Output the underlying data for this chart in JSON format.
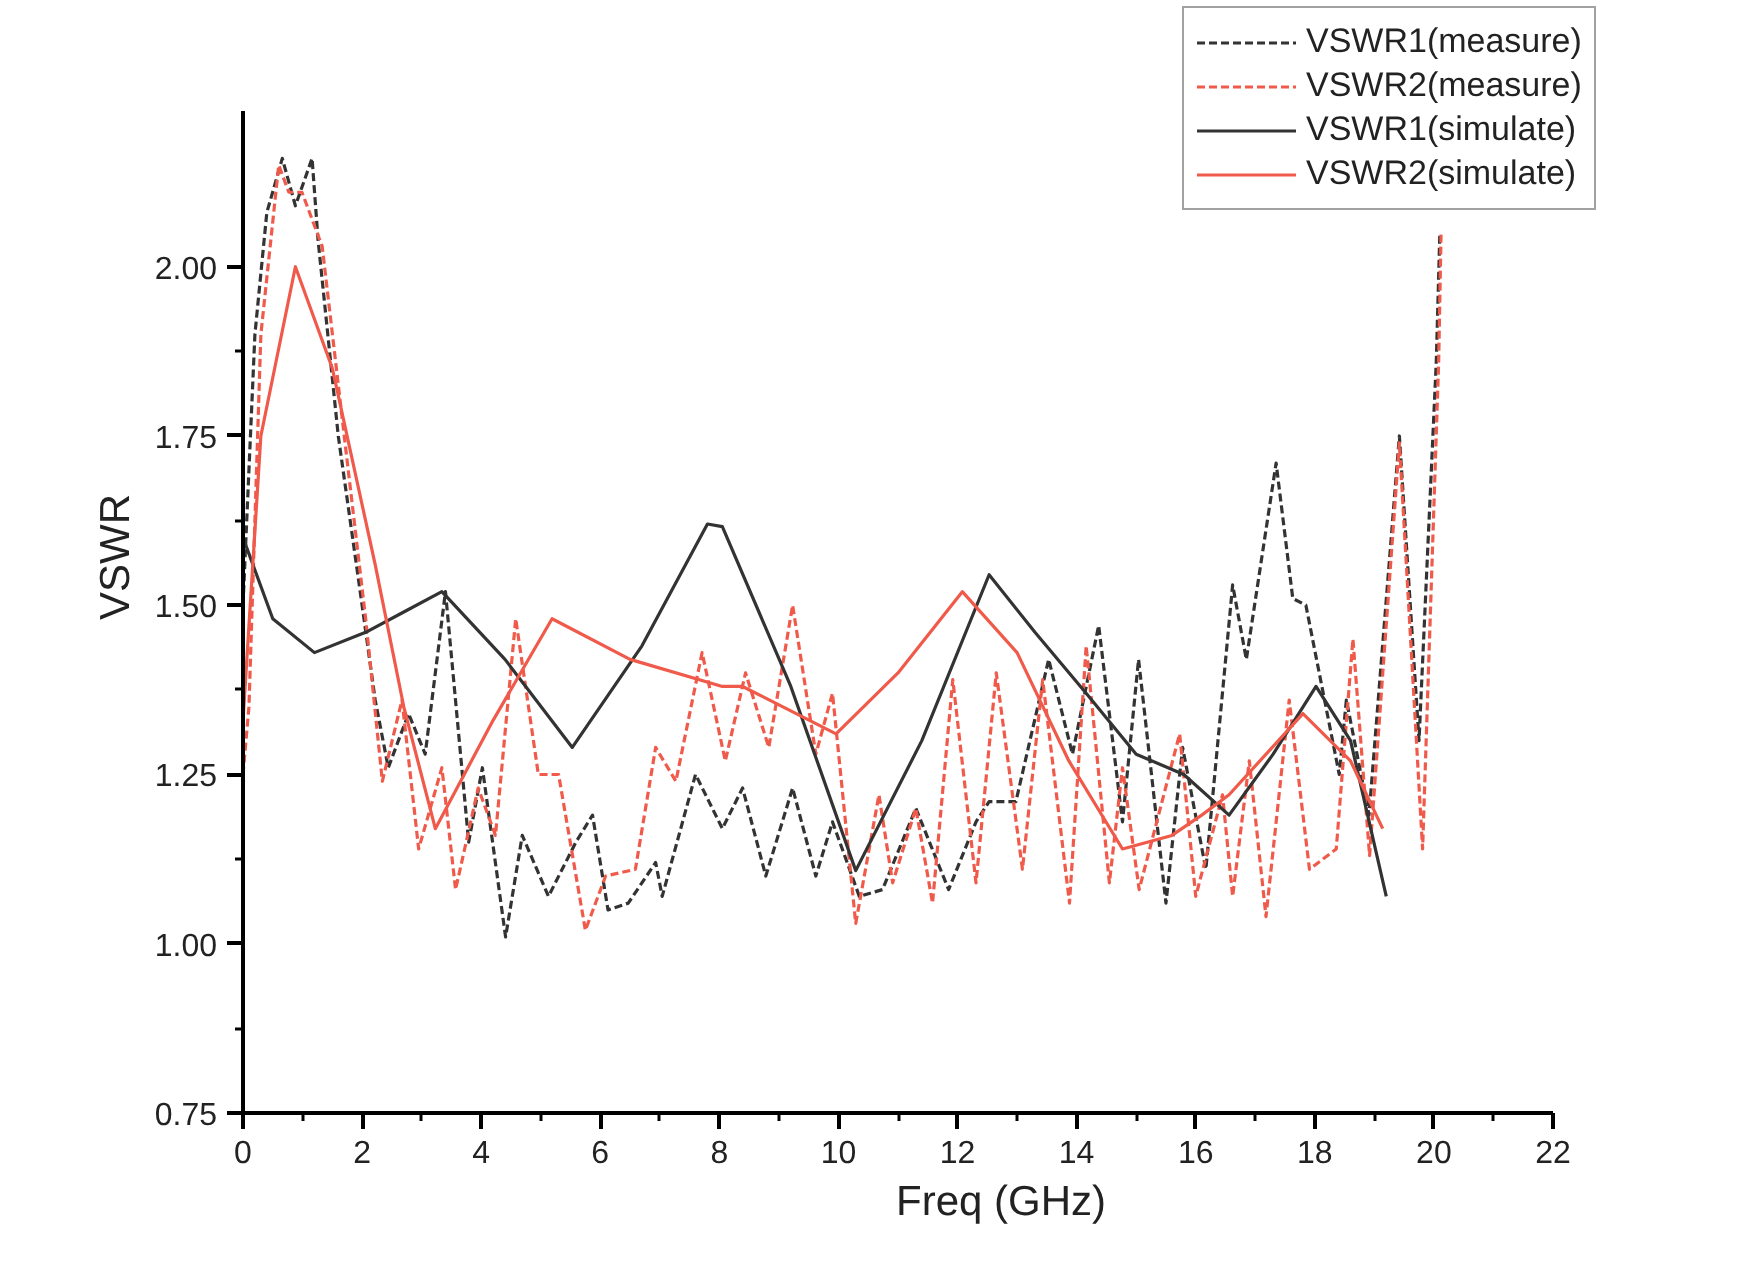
{
  "chart_data": {
    "type": "line",
    "xlabel": "Freq (GHz)",
    "ylabel": "VSWR",
    "xlim": [
      0,
      22
    ],
    "ylim": [
      0.75,
      2.23
    ],
    "xticks": [
      0,
      2,
      4,
      6,
      8,
      10,
      12,
      14,
      16,
      18,
      20,
      22
    ],
    "yticks": [
      0.75,
      {
        "value": 1,
        "label": "1.00"
      },
      1.25,
      {
        "value": 1.5,
        "label": "1.50"
      },
      1.75,
      {
        "value": 2,
        "label": "2.00"
      }
    ],
    "grid": false,
    "legend": "top right",
    "marker": "none",
    "series": [
      {
        "name": "VSWR1(measure)",
        "color": "#333333",
        "line_style": "dashed",
        "x": [
          0,
          0.2,
          0.4,
          0.66,
          0.88,
          1.16,
          1.26,
          1.6,
          2.0,
          2.22,
          2.44,
          2.78,
          3.06,
          3.4,
          3.79,
          4.02,
          4.41,
          4.69,
          5.13,
          5.59,
          5.87,
          6.13,
          6.47,
          6.93,
          7.04,
          7.6,
          8.05,
          8.39,
          8.78,
          9.23,
          9.62,
          9.9,
          10.35,
          10.74,
          11.3,
          11.85,
          12.31,
          12.53,
          12.98,
          13.53,
          13.93,
          14.37,
          14.77,
          15.04,
          15.5,
          15.78,
          16.17,
          16.62,
          16.85,
          17.35,
          17.63,
          17.85,
          18.41,
          18.53,
          18.91,
          19.42,
          19.75,
          20.04,
          20.1
        ],
        "values": [
          1.5,
          1.9,
          2.08,
          2.16,
          2.09,
          2.16,
          2.04,
          1.75,
          1.5,
          1.36,
          1.26,
          1.34,
          1.28,
          1.52,
          1.15,
          1.26,
          1.01,
          1.16,
          1.07,
          1.15,
          1.19,
          1.05,
          1.06,
          1.12,
          1.07,
          1.25,
          1.17,
          1.23,
          1.1,
          1.23,
          1.1,
          1.18,
          1.07,
          1.08,
          1.2,
          1.08,
          1.18,
          1.21,
          1.21,
          1.42,
          1.28,
          1.47,
          1.18,
          1.42,
          1.06,
          1.29,
          1.11,
          1.53,
          1.42,
          1.71,
          1.51,
          1.5,
          1.25,
          1.36,
          1.19,
          1.75,
          1.3,
          1.86,
          2.05
        ]
      },
      {
        "name": "VSWR2(measure)",
        "color": "#f05a4a",
        "line_style": "dashed",
        "x": [
          0,
          0.1,
          0.3,
          0.6,
          0.77,
          0.99,
          1.33,
          1.7,
          2.06,
          2.34,
          2.67,
          2.95,
          3.34,
          3.57,
          3.95,
          4.24,
          4.58,
          4.96,
          5.3,
          5.75,
          6.09,
          6.59,
          6.93,
          7.27,
          7.71,
          8.1,
          8.44,
          8.83,
          9.23,
          9.62,
          9.9,
          10.29,
          10.68,
          10.91,
          11.3,
          11.58,
          11.92,
          12.31,
          12.65,
          13.09,
          13.43,
          13.88,
          14.16,
          14.55,
          14.77,
          15.05,
          15.73,
          16.0,
          16.45,
          16.62,
          16.9,
          17.18,
          17.57,
          17.91,
          18.36,
          18.64,
          18.92,
          19.42,
          19.81,
          20.08,
          20.12
        ],
        "values": [
          1.25,
          1.35,
          1.9,
          2.15,
          2.11,
          2.11,
          2.03,
          1.75,
          1.48,
          1.24,
          1.36,
          1.14,
          1.26,
          1.08,
          1.23,
          1.16,
          1.48,
          1.25,
          1.25,
          1.02,
          1.1,
          1.11,
          1.29,
          1.24,
          1.43,
          1.27,
          1.4,
          1.29,
          1.5,
          1.28,
          1.37,
          1.03,
          1.22,
          1.09,
          1.2,
          1.06,
          1.39,
          1.09,
          1.4,
          1.11,
          1.39,
          1.06,
          1.44,
          1.09,
          1.26,
          1.08,
          1.31,
          1.07,
          1.22,
          1.07,
          1.27,
          1.04,
          1.36,
          1.11,
          1.14,
          1.45,
          1.13,
          1.74,
          1.14,
          1.86,
          2.05
        ]
      },
      {
        "name": "VSWR1(simulate)",
        "color": "#333333",
        "line_style": "solid",
        "x": [
          0,
          0.5,
          1.2,
          2.06,
          2.7,
          3.34,
          4.4,
          5.53,
          6.7,
          7.8,
          8.05,
          9.2,
          10.29,
          11.4,
          12.53,
          13.3,
          14.16,
          15.0,
          15.8,
          16.56,
          17.3,
          18.02,
          18.6,
          19.2
        ],
        "values": [
          1.6,
          1.48,
          1.43,
          1.46,
          1.49,
          1.52,
          1.42,
          1.29,
          1.44,
          1.62,
          1.616,
          1.38,
          1.108,
          1.3,
          1.545,
          1.46,
          1.37,
          1.28,
          1.25,
          1.19,
          1.28,
          1.38,
          1.3,
          1.07
        ]
      },
      {
        "name": "VSWR2(simulate)",
        "color": "#f05a4a",
        "line_style": "solid",
        "x": [
          0,
          0.3,
          0.88,
          1.5,
          2.22,
          2.7,
          3.23,
          4.2,
          5.19,
          6.5,
          8.05,
          8.39,
          9.96,
          11.0,
          12.08,
          13.0,
          13.87,
          14.77,
          15.6,
          16.1,
          16.56,
          17.8,
          18.6,
          19.14
        ],
        "values": [
          1.33,
          1.75,
          2.0,
          1.85,
          1.56,
          1.35,
          1.17,
          1.33,
          1.48,
          1.42,
          1.38,
          1.38,
          1.31,
          1.4,
          1.52,
          1.43,
          1.27,
          1.14,
          1.16,
          1.19,
          1.22,
          1.34,
          1.27,
          1.17
        ]
      }
    ]
  }
}
